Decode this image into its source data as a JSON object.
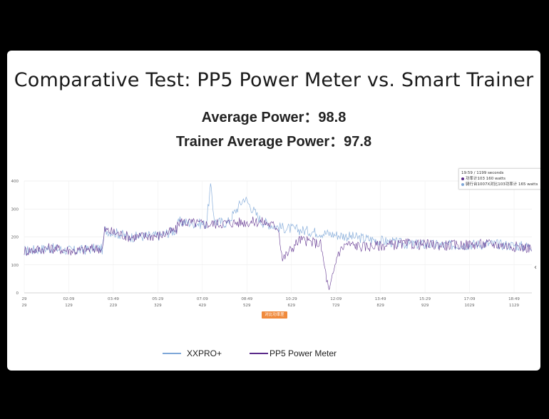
{
  "title": "Comparative Test: PP5 Power Meter vs. Smart Trainer",
  "stats": {
    "avg_power": "Average Power：98.8",
    "trainer_avg_power": "Trainer Average Power：97.8"
  },
  "tooltip": {
    "header": "19:59 / 1199 seconds",
    "line1": "功率计103  160 watts",
    "line2": "骑行台1007X对比103功率计  165 watts"
  },
  "badge": "对比功率差",
  "colors": {
    "xxpro": "#7ea7d8",
    "pp5": "#5a2a8a",
    "badge": "#f08a3c"
  },
  "chart_data": {
    "type": "line",
    "xlabel": "",
    "ylabel": "",
    "ylim": [
      0,
      400
    ],
    "yticks": [
      0,
      100,
      200,
      300,
      400
    ],
    "xticks_top": [
      "29",
      "02:09",
      "03:49",
      "05:29",
      "07:09",
      "08:49",
      "10:29",
      "12:09",
      "13:49",
      "15:29",
      "17:09",
      "18:49"
    ],
    "xticks_bottom": [
      "29",
      "129",
      "229",
      "329",
      "429",
      "529",
      "629",
      "729",
      "829",
      "929",
      "1029",
      "1129"
    ],
    "xlim_seconds": [
      0,
      1199
    ],
    "legend_position": "bottom-center",
    "grid": true,
    "series": [
      {
        "name": "XXPRO+",
        "x": [
          0,
          60,
          120,
          175,
          185,
          190,
          250,
          320,
          360,
          365,
          430,
          440,
          450,
          480,
          520,
          560,
          600,
          900,
          1000,
          1100,
          1199
        ],
        "values": [
          150,
          160,
          150,
          160,
          155,
          225,
          200,
          205,
          225,
          255,
          245,
          380,
          255,
          250,
          340,
          255,
          235,
          175,
          170,
          175,
          165
        ]
      },
      {
        "name": "PP5 Power Meter",
        "x": [
          0,
          60,
          120,
          175,
          185,
          190,
          250,
          320,
          360,
          365,
          430,
          480,
          560,
          600,
          610,
          650,
          700,
          720,
          740,
          760,
          800,
          900,
          1000,
          1100,
          1199
        ],
        "values": [
          150,
          160,
          150,
          160,
          155,
          225,
          200,
          205,
          225,
          255,
          245,
          250,
          255,
          235,
          120,
          190,
          175,
          0,
          140,
          175,
          165,
          175,
          170,
          175,
          160
        ]
      }
    ]
  }
}
